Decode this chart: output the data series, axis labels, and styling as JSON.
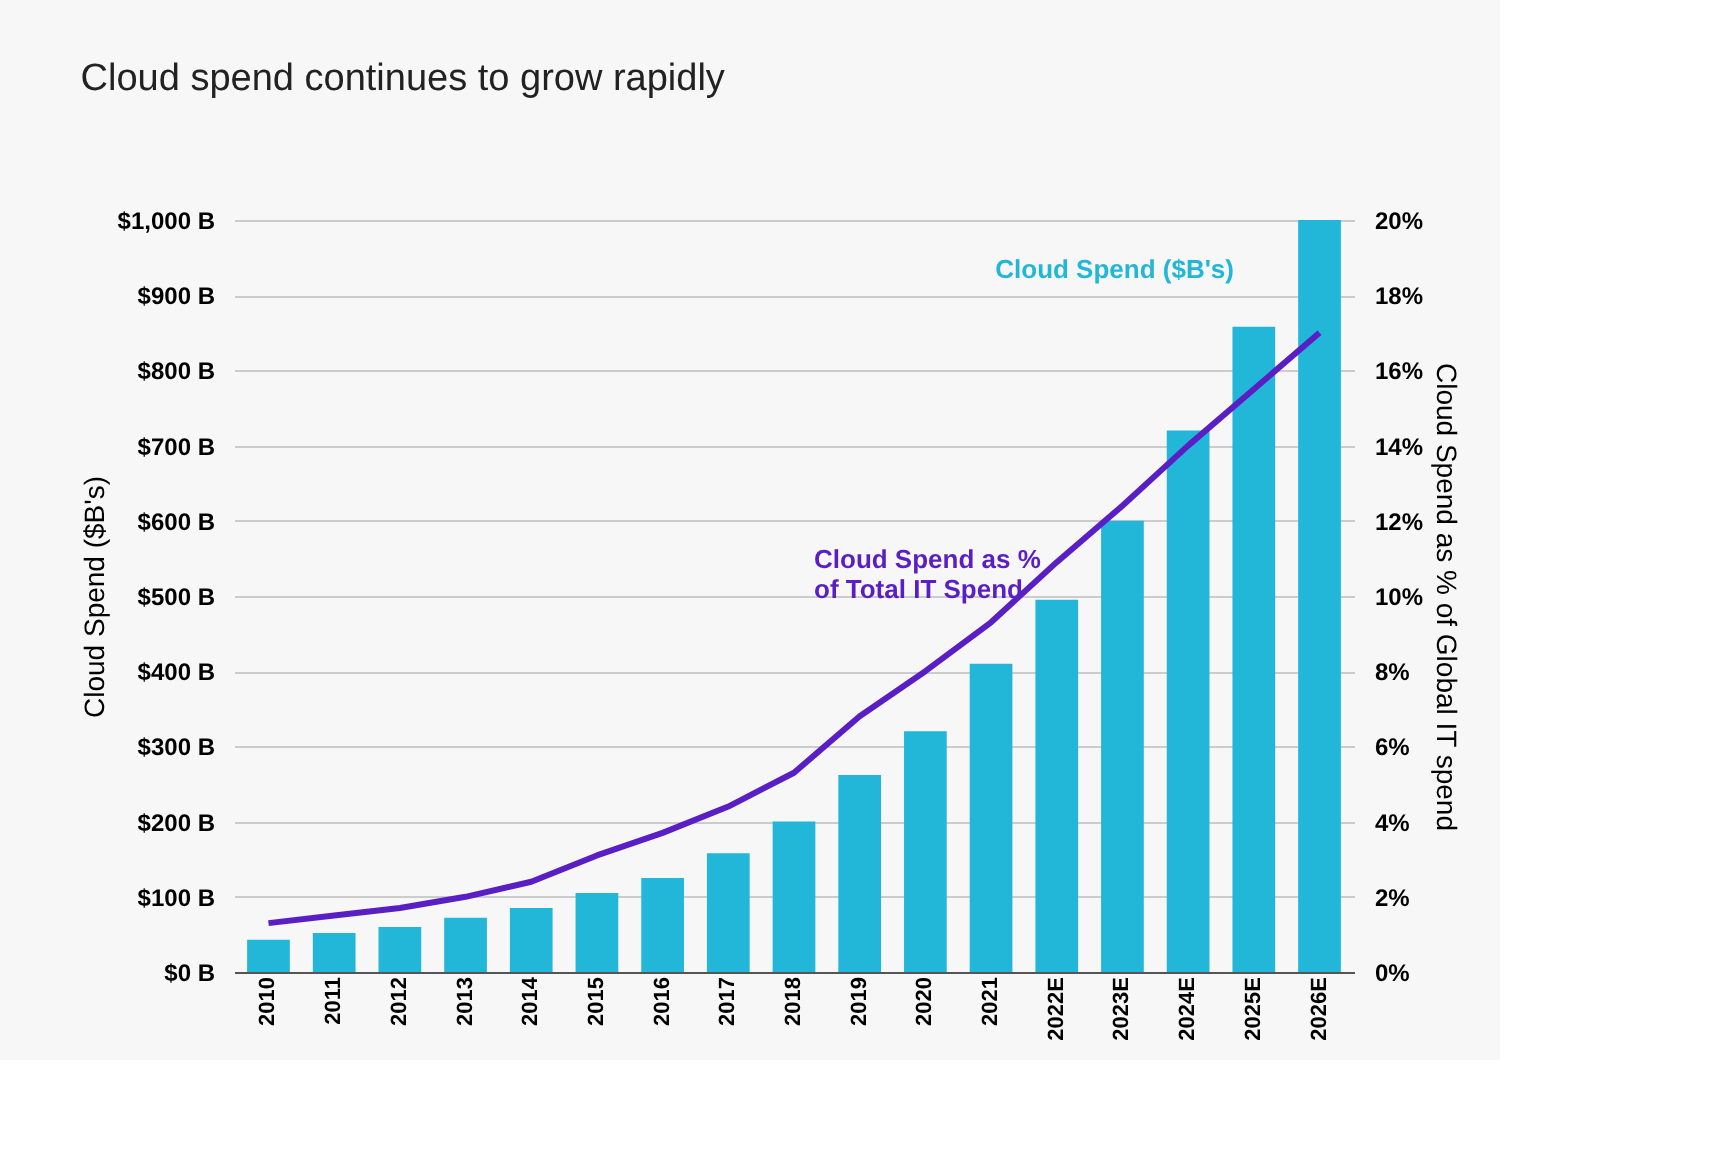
{
  "chart_data": {
    "type": "bar",
    "title": "Cloud spend continues to grow rapidly",
    "ylabel": "Cloud Spend ($B's)",
    "y2label": "Cloud Spend as % of Global IT spend",
    "categories": [
      "2010",
      "2011",
      "2012",
      "2013",
      "2014",
      "2015",
      "2016",
      "2017",
      "2018",
      "2019",
      "2020",
      "2021",
      "2022E",
      "2023E",
      "2024E",
      "2025E",
      "2026E"
    ],
    "series": [
      {
        "name": "Cloud Spend ($B's)",
        "color": "#22b6d9",
        "values": [
          43,
          52,
          60,
          72,
          85,
          105,
          125,
          158,
          200,
          262,
          320,
          410,
          495,
          600,
          720,
          858,
          1000
        ]
      },
      {
        "name": "Cloud Spend as % of Total IT Spend",
        "type": "line",
        "axis": "y2",
        "color": "#5a1fc4",
        "values": [
          1.3,
          1.5,
          1.7,
          2.0,
          2.4,
          3.1,
          3.7,
          4.4,
          5.3,
          6.8,
          8.0,
          9.3,
          10.9,
          12.4,
          14.0,
          15.5,
          17.0
        ]
      }
    ],
    "ylim": [
      0,
      1000
    ],
    "yticks": [
      {
        "value": 0,
        "label": "$0 B"
      },
      {
        "value": 100,
        "label": "$100 B"
      },
      {
        "value": 200,
        "label": "$200 B"
      },
      {
        "value": 300,
        "label": "$300 B"
      },
      {
        "value": 400,
        "label": "$400 B"
      },
      {
        "value": 500,
        "label": "$500 B"
      },
      {
        "value": 600,
        "label": "$600 B"
      },
      {
        "value": 700,
        "label": "$700 B"
      },
      {
        "value": 800,
        "label": "$800 B"
      },
      {
        "value": 900,
        "label": "$900 B"
      },
      {
        "value": 1000,
        "label": "$1,000 B"
      }
    ],
    "y2lim": [
      0,
      20
    ],
    "y2ticks": [
      {
        "value": 0,
        "label": "0%"
      },
      {
        "value": 2,
        "label": "2%"
      },
      {
        "value": 4,
        "label": "4%"
      },
      {
        "value": 6,
        "label": "6%"
      },
      {
        "value": 8,
        "label": "8%"
      },
      {
        "value": 10,
        "label": "10%"
      },
      {
        "value": 12,
        "label": "12%"
      },
      {
        "value": 14,
        "label": "14%"
      },
      {
        "value": 16,
        "label": "16%"
      },
      {
        "value": 18,
        "label": "18%"
      },
      {
        "value": 20,
        "label": "20%"
      }
    ],
    "grid": "y"
  }
}
